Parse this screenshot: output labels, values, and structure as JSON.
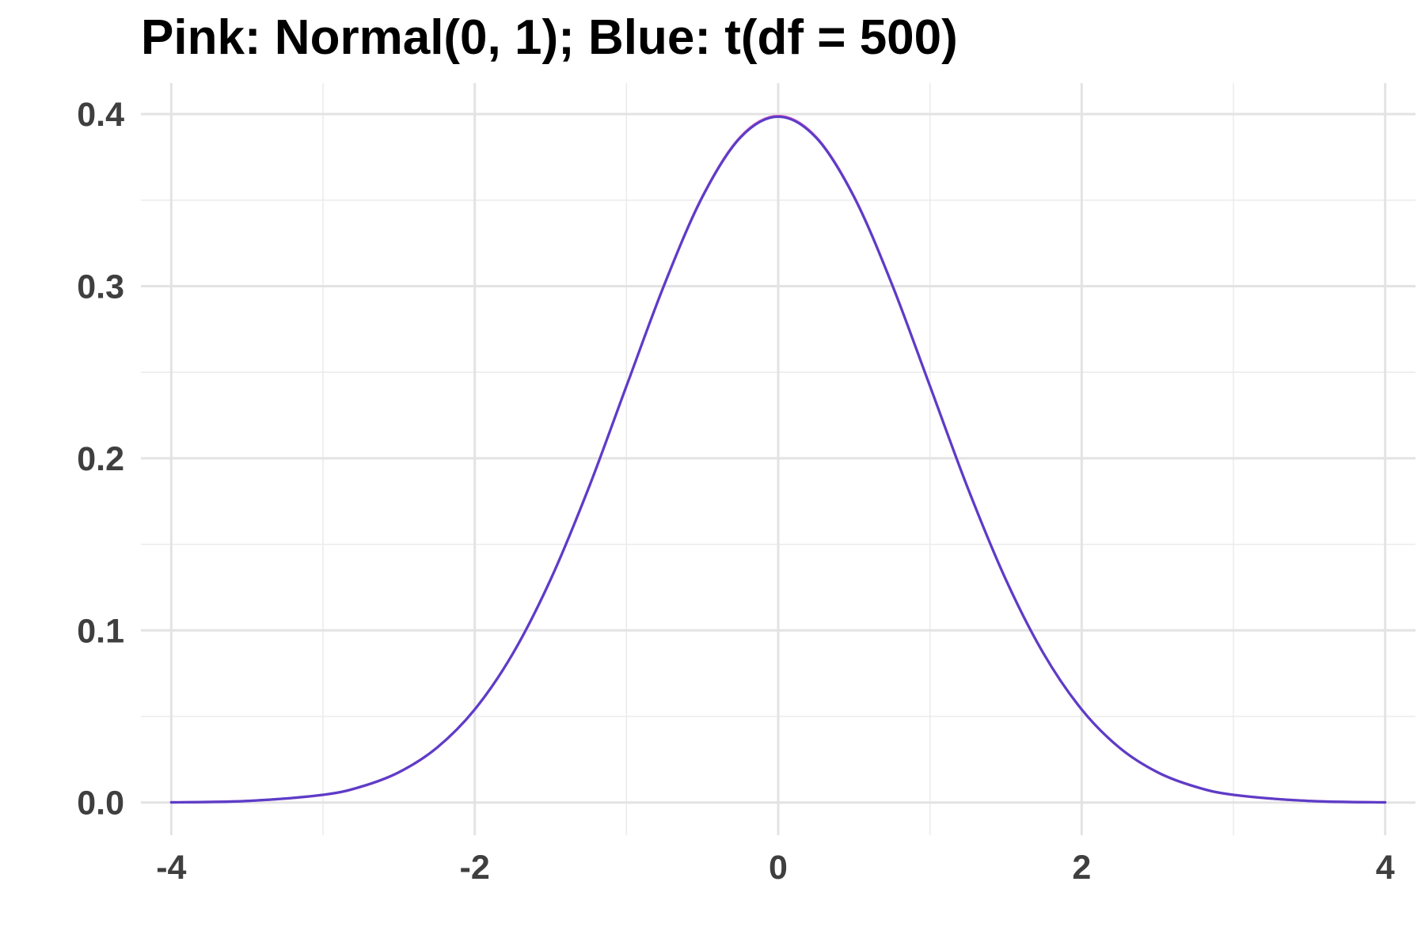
{
  "chart_data": {
    "type": "line",
    "title": "Pink: Normal(0, 1); Blue: t(df = 500)",
    "xlabel": "",
    "ylabel": "",
    "xlim": [
      -4.2,
      4.2
    ],
    "ylim": [
      -0.019,
      0.418
    ],
    "grid": true,
    "legend": "none",
    "x_major_ticks": [
      -4,
      -2,
      0,
      2,
      4
    ],
    "x_tick_labels": [
      "-4",
      "-2",
      "0",
      "2",
      "4"
    ],
    "x_minor_ticks": [
      -3,
      -1,
      1,
      3
    ],
    "y_major_ticks": [
      0.0,
      0.1,
      0.2,
      0.3,
      0.4
    ],
    "y_tick_labels": [
      "0.0",
      "0.1",
      "0.2",
      "0.3",
      "0.4"
    ],
    "y_minor_ticks": [
      0.05,
      0.15,
      0.25,
      0.35
    ],
    "series": [
      {
        "color": "#f06ec8",
        "x": [
          -4,
          -3.5,
          -3,
          -2.75,
          -2.5,
          -2.25,
          -2,
          -1.75,
          -1.5,
          -1.25,
          -1,
          -0.75,
          -0.5,
          -0.25,
          0,
          0.25,
          0.5,
          0.75,
          1,
          1.25,
          1.5,
          1.75,
          2,
          2.25,
          2.5,
          2.75,
          3,
          3.5,
          4
        ],
        "y": [
          0.0001,
          0.0009,
          0.0044,
          0.0091,
          0.0175,
          0.0317,
          0.054,
          0.0863,
          0.1295,
          0.1826,
          0.242,
          0.3011,
          0.3521,
          0.3867,
          0.3989,
          0.3867,
          0.3521,
          0.3011,
          0.242,
          0.1826,
          0.1295,
          0.0863,
          0.054,
          0.0317,
          0.0175,
          0.0091,
          0.0044,
          0.0009,
          0.0001
        ]
      },
      {
        "color": "#5b3dc8",
        "x": [
          -4,
          -3.5,
          -3,
          -2.75,
          -2.5,
          -2.25,
          -2,
          -1.75,
          -1.5,
          -1.25,
          -1,
          -0.75,
          -0.5,
          -0.25,
          0,
          0.25,
          0.5,
          0.75,
          1,
          1.25,
          1.5,
          1.75,
          2,
          2.25,
          2.5,
          2.75,
          3,
          3.5,
          4
        ],
        "y": [
          0.0001,
          0.0009,
          0.0045,
          0.0092,
          0.0176,
          0.0318,
          0.0541,
          0.0864,
          0.1296,
          0.1826,
          0.242,
          0.301,
          0.3518,
          0.3863,
          0.3985,
          0.3863,
          0.3518,
          0.301,
          0.242,
          0.1826,
          0.1296,
          0.0864,
          0.0541,
          0.0318,
          0.0176,
          0.0092,
          0.0045,
          0.0009,
          0.0001
        ]
      }
    ]
  }
}
